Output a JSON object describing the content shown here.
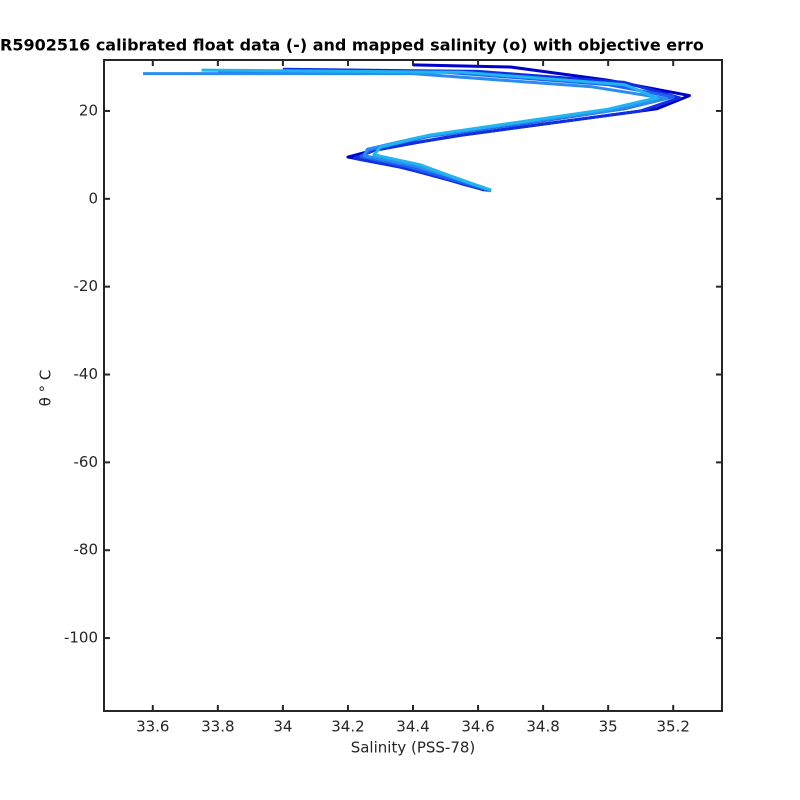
{
  "chart_data": {
    "type": "line",
    "title": "R5902516 calibrated float data (-) and mapped salinity (o) with objective erro",
    "xlabel": "Salinity (PSS-78)",
    "ylabel": "θ ° C",
    "xlim": [
      33.45,
      35.35
    ],
    "ylim": [
      -116.6,
      31.6
    ],
    "xticks": [
      33.6,
      33.8,
      34,
      34.2,
      34.4,
      34.6,
      34.8,
      35,
      35.2
    ],
    "yticks": [
      -100,
      -80,
      -60,
      -40,
      -20,
      0,
      20
    ],
    "series": [
      {
        "color": "#0000cc",
        "x": [
          34.4,
          34.7,
          35.0,
          35.25,
          35.15,
          34.85,
          34.55,
          34.3,
          34.2,
          34.35,
          34.45,
          34.55,
          34.62
        ],
        "values": [
          30.5,
          30.0,
          27.0,
          23.5,
          20.5,
          17.5,
          14.5,
          11.5,
          9.5,
          7.5,
          5.5,
          3.5,
          2.0
        ]
      },
      {
        "color": "#1030e0",
        "x": [
          34.0,
          34.6,
          35.05,
          35.22,
          35.1,
          34.8,
          34.5,
          34.28,
          34.22,
          34.36,
          34.47,
          34.56,
          34.63
        ],
        "values": [
          29.5,
          29.0,
          26.5,
          23.0,
          20.0,
          17.0,
          14.0,
          11.0,
          9.2,
          7.2,
          5.2,
          3.2,
          1.9
        ]
      },
      {
        "color": "#2060f0",
        "x": [
          33.8,
          34.5,
          35.0,
          35.2,
          35.05,
          34.75,
          34.45,
          34.27,
          34.24,
          34.38,
          34.48,
          34.57,
          34.64
        ],
        "values": [
          29.0,
          28.8,
          26.0,
          23.2,
          20.5,
          17.2,
          14.2,
          11.2,
          9.6,
          7.4,
          5.3,
          3.3,
          1.8
        ]
      },
      {
        "color": "#2a8cf0",
        "x": [
          33.57,
          34.4,
          34.95,
          35.18,
          35.02,
          34.7,
          34.42,
          34.26,
          34.25,
          34.4,
          34.5,
          34.58,
          34.64
        ],
        "values": [
          28.5,
          28.5,
          25.5,
          22.8,
          20.2,
          17.0,
          14.0,
          11.3,
          9.8,
          7.6,
          5.4,
          3.4,
          1.9
        ]
      },
      {
        "color": "#20b4f0",
        "x": [
          33.75,
          34.55,
          35.05,
          35.15,
          35.0,
          34.72,
          34.45,
          34.3,
          34.28,
          34.42,
          34.5,
          34.58,
          34.64
        ],
        "values": [
          29.3,
          28.8,
          26.0,
          23.0,
          20.4,
          17.4,
          14.5,
          11.8,
          10.0,
          7.8,
          5.6,
          3.5,
          2.0
        ]
      }
    ]
  }
}
